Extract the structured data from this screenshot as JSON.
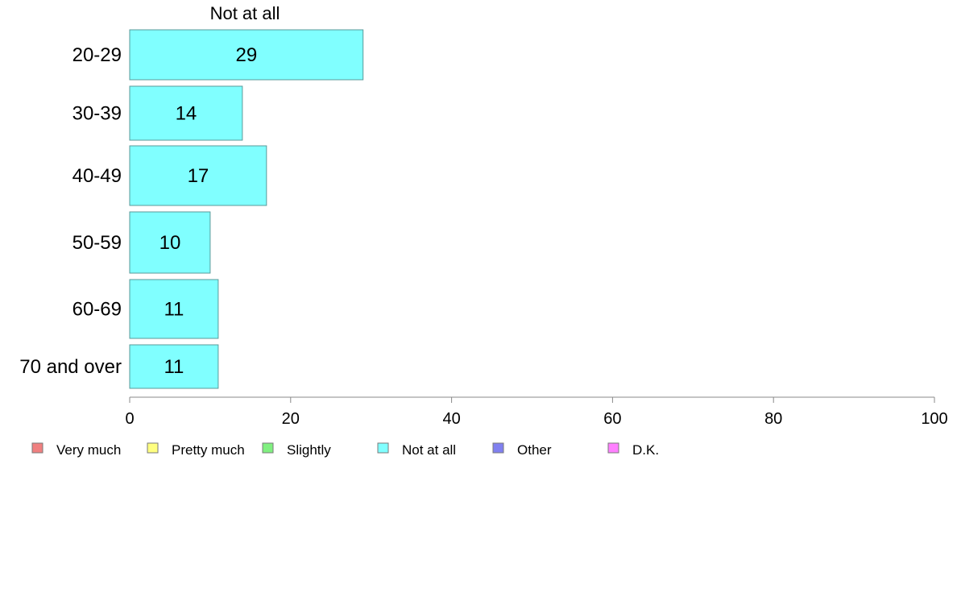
{
  "chart_data": {
    "type": "bar",
    "orientation": "horizontal",
    "series_label": "Not at all",
    "categories": [
      "20-29",
      "30-39",
      "40-49",
      "50-59",
      "60-69",
      "70 and over"
    ],
    "series": [
      {
        "name": "Not at all",
        "values": [
          29,
          14,
          17,
          10,
          11,
          11
        ]
      }
    ],
    "xlim": [
      0,
      100
    ],
    "xticks": [
      0,
      20,
      40,
      60,
      80,
      100
    ],
    "grid": false,
    "legend": {
      "placement": "bottom",
      "items": [
        {
          "label": "Very much",
          "color": "#f08080"
        },
        {
          "label": "Pretty much",
          "color": "#ffff80"
        },
        {
          "label": "Slightly",
          "color": "#80f080"
        },
        {
          "label": "Not at all",
          "color": "#80ffff"
        },
        {
          "label": "Other",
          "color": "#8080f0"
        },
        {
          "label": "D.K.",
          "color": "#ff80ff"
        }
      ]
    },
    "colors": {
      "bar_fill": "#80ffff",
      "bar_stroke": "#5a9a9a",
      "axis": "#888888"
    }
  }
}
